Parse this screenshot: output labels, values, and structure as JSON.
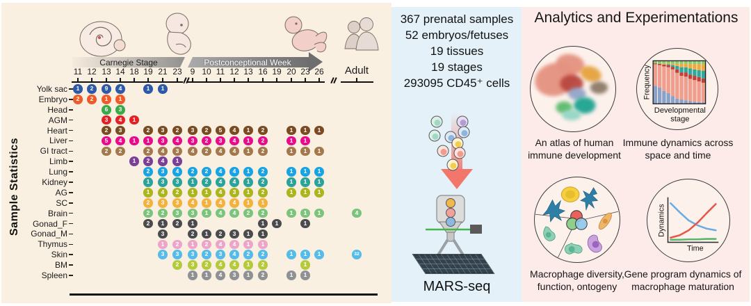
{
  "middle": {
    "stats_lines": [
      "367 prenatal samples",
      "52 embryos/fetuses",
      "19 tissues",
      "19 stages",
      "293095 CD45⁺ cells"
    ],
    "mars_label": "MARS-seq"
  },
  "right": {
    "title": "Analytics and Experimentations",
    "circles": [
      {
        "caption": "An atlas of human immune development"
      },
      {
        "caption": "Immune dynamics across space and time"
      },
      {
        "caption": "Macrophage diversity, function, ontogeny"
      },
      {
        "caption": "Gene program dynamics of macrophage maturation"
      }
    ],
    "atlas_cluster_colors": [
      "#e59180",
      "#e59180",
      "#b8473e",
      "#e5a23e",
      "#8c7a66",
      "#93a5c8",
      "#1fa391",
      "#5bbb6d",
      "#93d6c3"
    ]
  },
  "chart_data": [
    {
      "type": "heatmap",
      "title": "Sample Statistics",
      "x_axis_groups": [
        {
          "label": "Carnegie Stage",
          "columns": [
            "11",
            "12",
            "13",
            "14",
            "18",
            "19",
            "21",
            "23"
          ]
        },
        {
          "label": "Postconceptional Week",
          "columns": [
            "9",
            "10",
            "11",
            "12",
            "13",
            "16",
            "19",
            "20",
            "23",
            "26"
          ]
        },
        {
          "label": "Adult",
          "columns": [
            "Adult"
          ]
        }
      ],
      "columns": [
        "11",
        "12",
        "13",
        "14",
        "18",
        "19",
        "21",
        "23",
        "9",
        "10",
        "11",
        "12",
        "13",
        "16",
        "19",
        "20",
        "23",
        "26",
        "Adult"
      ],
      "rows": [
        {
          "tissue": "Yolk sac",
          "color": "#2c5aa8",
          "counts": [
            1,
            2,
            9,
            4,
            null,
            1,
            1,
            null,
            null,
            null,
            null,
            null,
            null,
            null,
            null,
            null,
            null,
            null,
            null
          ]
        },
        {
          "tissue": "Embryo",
          "color": "#f05a28",
          "counts": [
            2,
            2,
            1,
            1,
            null,
            null,
            null,
            null,
            null,
            null,
            null,
            null,
            null,
            null,
            null,
            null,
            null,
            null,
            null
          ]
        },
        {
          "tissue": "Head",
          "color": "#3aa94a",
          "counts": [
            null,
            null,
            6,
            3,
            null,
            null,
            null,
            null,
            null,
            null,
            null,
            null,
            null,
            null,
            null,
            null,
            null,
            null,
            null
          ]
        },
        {
          "tissue": "AGM",
          "color": "#e42026",
          "counts": [
            null,
            null,
            3,
            4,
            1,
            null,
            null,
            null,
            null,
            null,
            null,
            null,
            null,
            null,
            null,
            null,
            null,
            null,
            null
          ]
        },
        {
          "tissue": "Heart",
          "color": "#7a4a20",
          "counts": [
            null,
            null,
            2,
            3,
            null,
            2,
            3,
            2,
            3,
            2,
            5,
            4,
            1,
            2,
            null,
            1,
            1,
            1,
            null
          ]
        },
        {
          "tissue": "Liver",
          "color": "#e80c8c",
          "counts": [
            null,
            null,
            5,
            4,
            1,
            1,
            3,
            4,
            3,
            2,
            3,
            4,
            1,
            2,
            null,
            1,
            1,
            null,
            null
          ]
        },
        {
          "tissue": "GI tract",
          "color": "#a3794c",
          "counts": [
            null,
            null,
            2,
            2,
            null,
            2,
            4,
            3,
            4,
            2,
            4,
            4,
            1,
            2,
            null,
            1,
            1,
            1,
            null
          ]
        },
        {
          "tissue": "Limb",
          "color": "#7b3f98",
          "counts": [
            null,
            null,
            null,
            null,
            1,
            2,
            4,
            1,
            null,
            null,
            null,
            null,
            null,
            null,
            null,
            null,
            null,
            null,
            null
          ]
        },
        {
          "tissue": "Lung",
          "color": "#19a3e3",
          "counts": [
            null,
            null,
            null,
            null,
            null,
            2,
            3,
            4,
            2,
            2,
            4,
            4,
            1,
            2,
            null,
            1,
            1,
            1,
            null
          ]
        },
        {
          "tissue": "Kidney",
          "color": "#2ba39a",
          "counts": [
            null,
            null,
            null,
            null,
            null,
            1,
            3,
            3,
            1,
            2,
            4,
            4,
            1,
            2,
            null,
            1,
            1,
            1,
            null
          ]
        },
        {
          "tissue": "AG",
          "color": "#acb41e",
          "counts": [
            null,
            null,
            null,
            null,
            null,
            1,
            4,
            2,
            1,
            1,
            4,
            3,
            1,
            2,
            null,
            1,
            1,
            1,
            null
          ]
        },
        {
          "tissue": "SC",
          "color": "#f4b13e",
          "counts": [
            null,
            null,
            null,
            null,
            null,
            2,
            3,
            3,
            4,
            1,
            4,
            4,
            1,
            1,
            null,
            null,
            null,
            null,
            null
          ]
        },
        {
          "tissue": "Brain",
          "color": "#7cc47c",
          "counts": [
            null,
            null,
            null,
            null,
            null,
            2,
            2,
            3,
            3,
            1,
            4,
            4,
            2,
            2,
            null,
            1,
            1,
            1,
            4
          ]
        },
        {
          "tissue": "Gonad_F",
          "color": "#4b4b4d",
          "counts": [
            null,
            null,
            null,
            null,
            null,
            2,
            1,
            2,
            1,
            null,
            null,
            null,
            null,
            1,
            1,
            null,
            1,
            null,
            null
          ]
        },
        {
          "tissue": "Gonad_M",
          "color": "#4b4b4d",
          "counts": [
            null,
            null,
            null,
            null,
            null,
            null,
            3,
            null,
            2,
            1,
            2,
            3,
            1,
            1,
            null,
            null,
            null,
            null,
            null
          ]
        },
        {
          "tissue": "Thymus",
          "color": "#eca4c9",
          "counts": [
            null,
            null,
            null,
            null,
            null,
            null,
            1,
            2,
            1,
            2,
            4,
            4,
            1,
            1,
            null,
            null,
            null,
            null,
            null
          ]
        },
        {
          "tissue": "Skin",
          "color": "#55bcea",
          "counts": [
            null,
            null,
            null,
            null,
            null,
            null,
            3,
            3,
            3,
            2,
            3,
            4,
            2,
            2,
            null,
            1,
            1,
            1,
            32
          ]
        },
        {
          "tissue": "BM",
          "color": "#b5ca3a",
          "counts": [
            null,
            null,
            null,
            null,
            null,
            null,
            null,
            2,
            3,
            2,
            4,
            4,
            1,
            2,
            null,
            null,
            1,
            null,
            null
          ]
        },
        {
          "tissue": "Spleen",
          "color": "#8f9193",
          "counts": [
            null,
            null,
            null,
            null,
            null,
            null,
            null,
            null,
            1,
            1,
            4,
            3,
            1,
            2,
            null,
            1,
            1,
            null,
            null
          ]
        }
      ]
    },
    {
      "type": "bar",
      "variant": "stacked",
      "title": "Immune dynamics across space and time",
      "ylabel": "Frequency",
      "xlabel": "Developmental stage",
      "xlabel_lines": [
        "Developmental",
        "stage"
      ],
      "colors": [
        "#8aa2c8",
        "#ef9d8c",
        "#c2403a",
        "#2fa99c",
        "#eeaa3e",
        "#8bc96f"
      ],
      "bars": [
        [
          0.42,
          0.5,
          0.02,
          0.0,
          0.0,
          0.06
        ],
        [
          0.38,
          0.52,
          0.03,
          0.0,
          0.0,
          0.07
        ],
        [
          0.3,
          0.57,
          0.04,
          0.0,
          0.02,
          0.07
        ],
        [
          0.25,
          0.6,
          0.05,
          0.02,
          0.02,
          0.06
        ],
        [
          0.18,
          0.62,
          0.06,
          0.04,
          0.03,
          0.07
        ],
        [
          0.12,
          0.6,
          0.08,
          0.08,
          0.05,
          0.07
        ],
        [
          0.1,
          0.55,
          0.08,
          0.12,
          0.08,
          0.07
        ],
        [
          0.08,
          0.55,
          0.1,
          0.12,
          0.08,
          0.07
        ],
        [
          0.06,
          0.52,
          0.1,
          0.14,
          0.1,
          0.08
        ],
        [
          0.05,
          0.5,
          0.1,
          0.15,
          0.12,
          0.08
        ],
        [
          0.04,
          0.48,
          0.1,
          0.16,
          0.14,
          0.08
        ],
        [
          0.04,
          0.45,
          0.1,
          0.18,
          0.15,
          0.08
        ]
      ]
    },
    {
      "type": "line",
      "title": "Gene program dynamics of macrophage maturation",
      "ylabel": "Dynamics",
      "xlabel": "Time",
      "series": [
        {
          "name": "decreasing-program",
          "color": "#6aace4",
          "values": [
            0.92,
            0.7,
            0.5,
            0.38,
            0.3,
            0.26
          ]
        },
        {
          "name": "increasing-program",
          "color": "#e8564a",
          "values": [
            0.08,
            0.14,
            0.26,
            0.45,
            0.68,
            0.9
          ]
        },
        {
          "name": "flat-program",
          "color": "#56b86b",
          "values": [
            0.03,
            0.03,
            0.04,
            0.04,
            0.05,
            0.05
          ]
        }
      ]
    }
  ]
}
